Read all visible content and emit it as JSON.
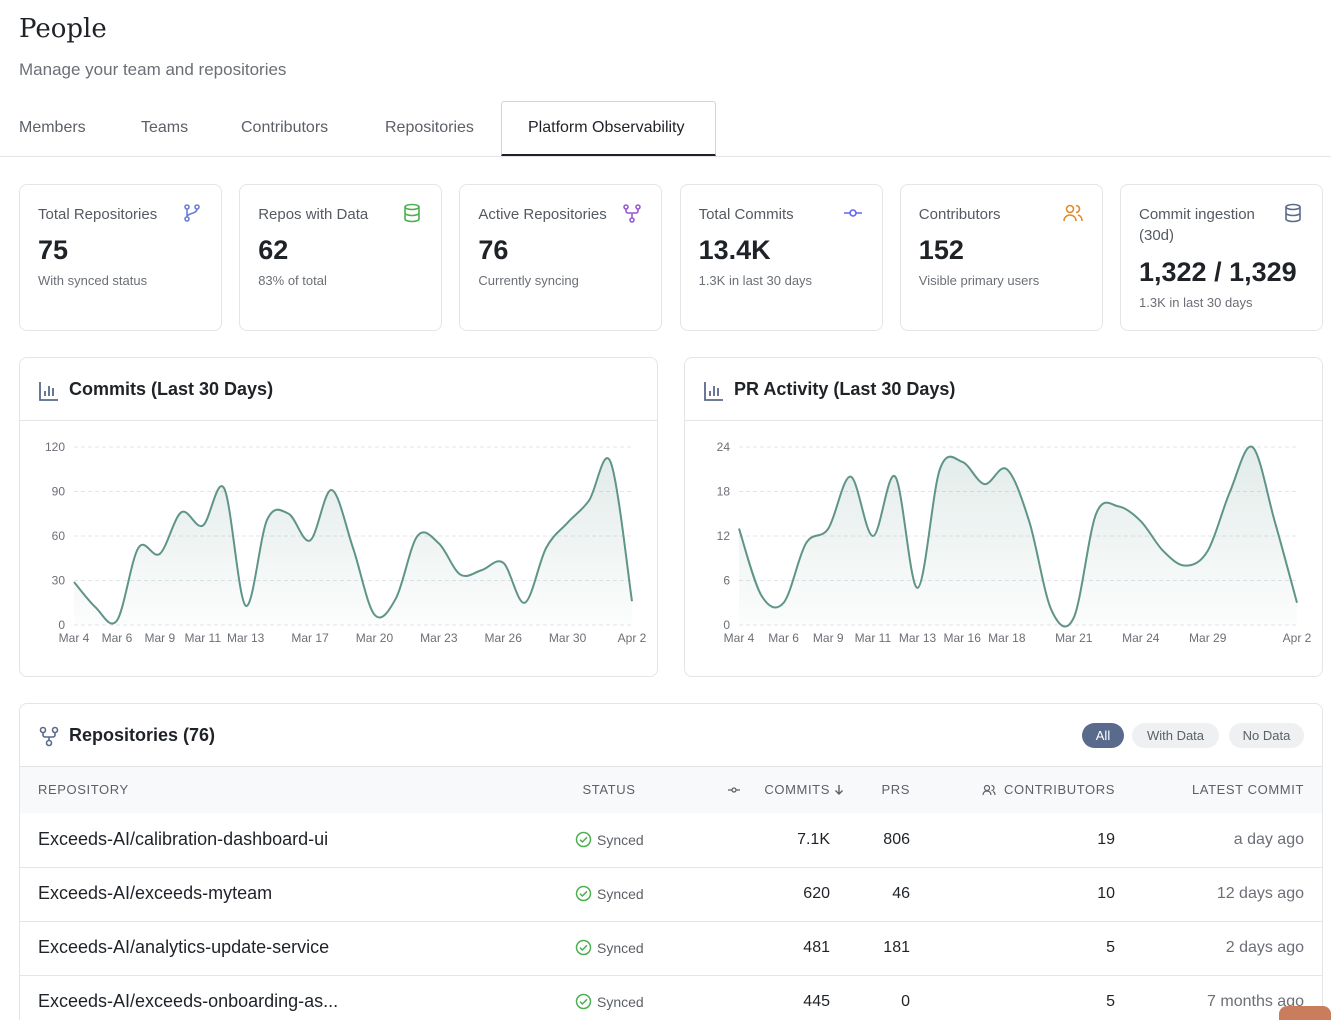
{
  "header": {
    "title": "People",
    "subtitle": "Manage your team and repositories"
  },
  "tabs": [
    "Members",
    "Teams",
    "Contributors",
    "Repositories",
    "Platform Observability"
  ],
  "stats": [
    {
      "label": "Total Repositories",
      "value": "75",
      "note": "With synced status"
    },
    {
      "label": "Repos with Data",
      "value": "62",
      "note": "83% of total"
    },
    {
      "label": "Active Repositories",
      "value": "76",
      "note": "Currently syncing"
    },
    {
      "label": "Total Commits",
      "value": "13.4K",
      "note": "1.3K in last 30 days"
    },
    {
      "label": "Contributors",
      "value": "152",
      "note": "Visible primary users"
    },
    {
      "label": "Commit ingestion (30d)",
      "value": "1,322 / 1,329",
      "note": "1.3K in last 30 days"
    }
  ],
  "chart_data": [
    {
      "type": "line",
      "title": "Commits (Last 30 Days)",
      "color": "#5f9488",
      "grid": true,
      "ylim": [
        0,
        120
      ],
      "yticks": [
        0,
        30,
        60,
        90,
        120
      ],
      "categories": [
        "Mar 4",
        null,
        "Mar 6",
        null,
        "Mar 9",
        null,
        "Mar 11",
        null,
        "Mar 13",
        null,
        null,
        "Mar 17",
        null,
        null,
        "Mar 20",
        null,
        null,
        "Mar 23",
        null,
        null,
        "Mar 26",
        null,
        null,
        "Mar 30",
        null,
        null,
        "Apr 2"
      ],
      "values": [
        29,
        12,
        3,
        52,
        48,
        76,
        67,
        92,
        13,
        71,
        75,
        57,
        91,
        52,
        7,
        18,
        60,
        55,
        34,
        37,
        42,
        15,
        52,
        69,
        84,
        110,
        16
      ]
    },
    {
      "type": "line",
      "title": "PR Activity (Last 30 Days)",
      "color": "#5f9488",
      "grid": true,
      "ylim": [
        0,
        24
      ],
      "yticks": [
        0,
        6,
        12,
        18,
        24
      ],
      "categories": [
        "Mar 4",
        null,
        "Mar 6",
        null,
        "Mar 9",
        null,
        "Mar 11",
        null,
        "Mar 13",
        null,
        "Mar 16",
        null,
        "Mar 18",
        null,
        null,
        "Mar 21",
        null,
        null,
        "Mar 24",
        null,
        null,
        "Mar 29",
        null,
        null,
        null,
        "Apr 2"
      ],
      "values": [
        13,
        4,
        3,
        11,
        13,
        20,
        12,
        20,
        5,
        21,
        22,
        19,
        21,
        14,
        2,
        1,
        15,
        16,
        14,
        10,
        8,
        10,
        18,
        24,
        14,
        3
      ]
    }
  ],
  "repositories": {
    "title": "Repositories (76)",
    "filters": [
      "All",
      "With Data",
      "No Data"
    ],
    "columns": [
      "REPOSITORY",
      "STATUS",
      "COMMITS",
      "PRS",
      "CONTRIBUTORS",
      "LATEST COMMIT"
    ],
    "rows": [
      [
        "Exceeds-AI/calibration-dashboard-ui",
        "Synced",
        "7.1K",
        "806",
        "19",
        "a day ago"
      ],
      [
        "Exceeds-AI/exceeds-myteam",
        "Synced",
        "620",
        "46",
        "10",
        "12 days ago"
      ],
      [
        "Exceeds-AI/analytics-update-service",
        "Synced",
        "481",
        "181",
        "5",
        "2 days ago"
      ],
      [
        "Exceeds-AI/exceeds-onboarding-as...",
        "Synced",
        "445",
        "0",
        "5",
        "7 months ago"
      ]
    ]
  }
}
